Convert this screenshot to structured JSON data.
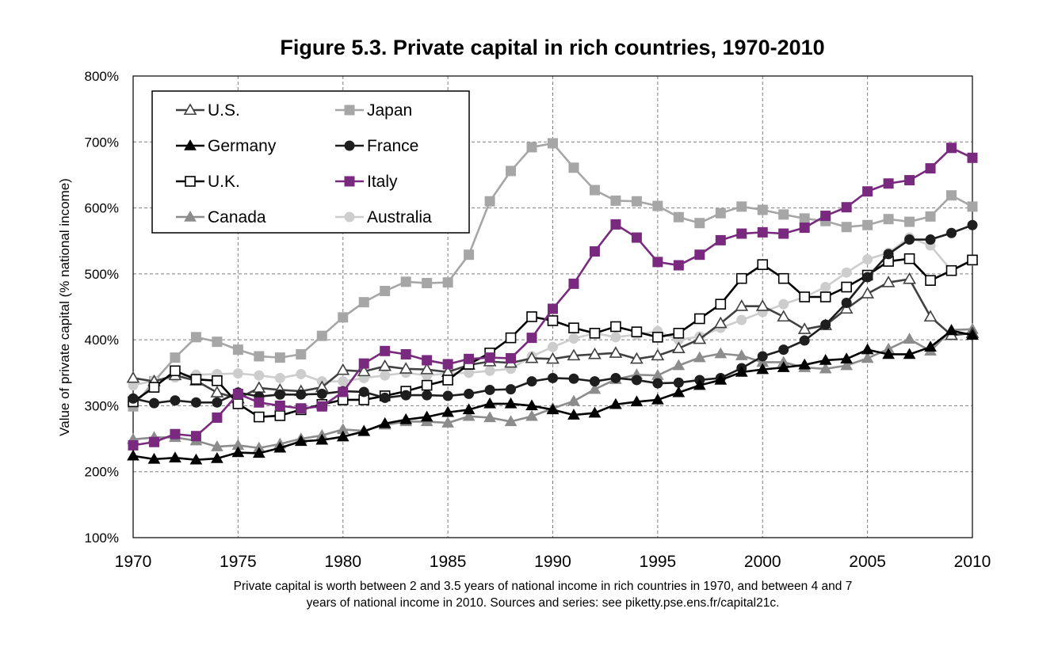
{
  "chart_data": {
    "type": "line",
    "title": "Figure 5.3. Private capital in rich countries, 1970-2010",
    "xlabel": "",
    "ylabel": "Value of private capital (% national income)",
    "xlim": [
      1970,
      2010
    ],
    "ylim": [
      100,
      800
    ],
    "x_ticks": [
      1970,
      1975,
      1980,
      1985,
      1990,
      1995,
      2000,
      2005,
      2010
    ],
    "x_tick_labels": [
      "1970",
      "1975",
      "1980",
      "1985",
      "1990",
      "1995",
      "2000",
      "2005",
      "2010"
    ],
    "y_ticks": [
      100,
      200,
      300,
      400,
      500,
      600,
      700,
      800
    ],
    "y_tick_labels": [
      "100%",
      "200%",
      "300%",
      "400%",
      "500%",
      "600%",
      "700%",
      "800%"
    ],
    "grid": true,
    "legend_position": "top-left",
    "caption_lines": [
      "Private capital is worth between 2 and 3.5 years of national income in rich countries in 1970, and between 4 and 7",
      "years of national income in 2010. Sources and series: see piketty.pse.ens.fr/capital21c."
    ],
    "years": [
      1970,
      1971,
      1972,
      1973,
      1974,
      1975,
      1976,
      1977,
      1978,
      1979,
      1980,
      1981,
      1982,
      1983,
      1984,
      1985,
      1986,
      1987,
      1988,
      1989,
      1990,
      1991,
      1992,
      1993,
      1994,
      1995,
      1996,
      1997,
      1998,
      1999,
      2000,
      2001,
      2002,
      2003,
      2004,
      2005,
      2006,
      2007,
      2008,
      2009,
      2010
    ],
    "series": [
      {
        "name": "Japan",
        "color": "#a6a6a6",
        "marker": "square-filled",
        "values": [
          299,
          337,
          373,
          404,
          397,
          385,
          375,
          373,
          378,
          406,
          434,
          457,
          474,
          488,
          486,
          487,
          529,
          610,
          656,
          692,
          698,
          661,
          627,
          611,
          610,
          603,
          586,
          577,
          592,
          602,
          597,
          590,
          584,
          580,
          571,
          574,
          583,
          579,
          587,
          619,
          602
        ]
      },
      {
        "name": "Australia",
        "color": "#cdcdcd",
        "marker": "circle-filled",
        "values": [
          331,
          338,
          343,
          347,
          348,
          349,
          346,
          342,
          348,
          337,
          337,
          342,
          346,
          350,
          346,
          349,
          350,
          353,
          356,
          375,
          389,
          402,
          410,
          404,
          408,
          413,
          400,
          405,
          418,
          430,
          442,
          454,
          465,
          480,
          502,
          522,
          532,
          555,
          543,
          505,
          520
        ]
      },
      {
        "name": "Canada",
        "color": "#8c8c8c",
        "marker": "triangle-filled",
        "values": [
          249,
          252,
          252,
          247,
          238,
          240,
          236,
          242,
          250,
          255,
          264,
          262,
          271,
          276,
          276,
          274,
          284,
          282,
          276,
          284,
          296,
          307,
          325,
          340,
          347,
          346,
          361,
          373,
          379,
          376,
          366,
          366,
          358,
          356,
          361,
          372,
          386,
          401,
          383,
          415,
          416
        ]
      },
      {
        "name": "U.S.",
        "color": "#404040",
        "marker": "triangle-open",
        "values": [
          342,
          337,
          346,
          338,
          320,
          311,
          327,
          324,
          322,
          328,
          354,
          352,
          360,
          356,
          355,
          351,
          362,
          367,
          365,
          372,
          371,
          376,
          378,
          380,
          371,
          376,
          387,
          401,
          425,
          451,
          451,
          435,
          416,
          422,
          447,
          470,
          487,
          492,
          435,
          407,
          410
        ]
      },
      {
        "name": "U.K.",
        "color": "#000000",
        "marker": "square-open",
        "values": [
          306,
          328,
          353,
          340,
          338,
          303,
          283,
          285,
          294,
          302,
          309,
          309,
          315,
          322,
          331,
          339,
          363,
          380,
          403,
          435,
          429,
          418,
          410,
          420,
          412,
          404,
          410,
          432,
          454,
          493,
          514,
          493,
          465,
          465,
          480,
          498,
          519,
          523,
          490,
          505,
          521
        ]
      },
      {
        "name": "France",
        "color": "#1e1e1e",
        "marker": "circle-filled",
        "values": [
          311,
          304,
          308,
          305,
          305,
          320,
          314,
          317,
          317,
          318,
          322,
          321,
          312,
          316,
          316,
          315,
          318,
          324,
          325,
          337,
          342,
          341,
          337,
          342,
          339,
          334,
          335,
          339,
          342,
          357,
          375,
          385,
          399,
          423,
          456,
          495,
          530,
          552,
          552,
          562,
          574
        ]
      },
      {
        "name": "Italy",
        "color": "#7a2a7e",
        "marker": "square-filled",
        "values": [
          240,
          245,
          257,
          254,
          282,
          318,
          305,
          300,
          296,
          299,
          321,
          364,
          383,
          378,
          369,
          363,
          371,
          373,
          372,
          403,
          447,
          485,
          534,
          575,
          555,
          518,
          513,
          529,
          551,
          561,
          563,
          561,
          570,
          588,
          601,
          625,
          637,
          642,
          660,
          691,
          676
        ]
      },
      {
        "name": "Germany",
        "color": "#000000",
        "marker": "triangle-filled",
        "values": [
          224,
          219,
          221,
          218,
          220,
          229,
          228,
          236,
          246,
          248,
          253,
          261,
          273,
          279,
          283,
          290,
          294,
          303,
          303,
          300,
          294,
          286,
          289,
          302,
          306,
          309,
          320,
          331,
          339,
          351,
          355,
          358,
          362,
          369,
          371,
          385,
          378,
          378,
          389,
          414,
          407
        ]
      }
    ],
    "legend_entries": [
      "U.S.",
      "Japan",
      "Germany",
      "France",
      "U.K.",
      "Italy",
      "Canada",
      "Australia"
    ]
  }
}
